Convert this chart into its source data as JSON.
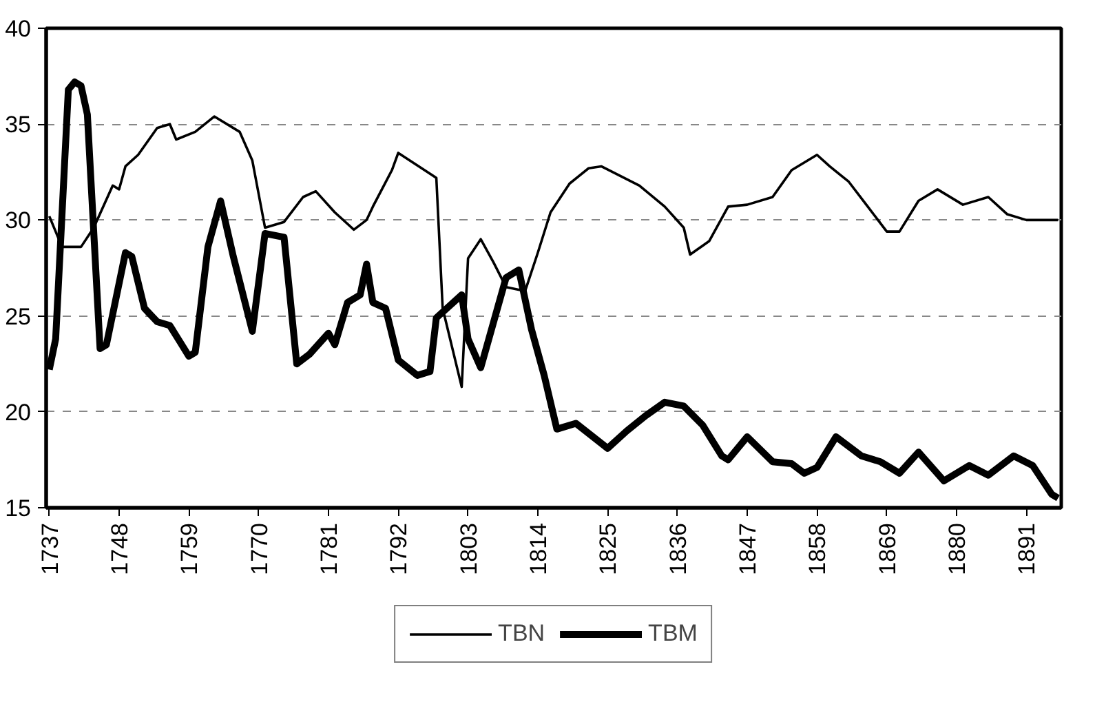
{
  "chart_data": {
    "type": "line",
    "xlim": [
      1736.5,
      1896.5
    ],
    "ylim": [
      15,
      40
    ],
    "xticks": [
      1737,
      1748,
      1759,
      1770,
      1781,
      1792,
      1803,
      1814,
      1825,
      1836,
      1847,
      1858,
      1869,
      1880,
      1891
    ],
    "yticks": [
      15,
      20,
      25,
      30,
      35,
      40
    ],
    "grid": "y",
    "legend": "bottom",
    "marker": "none",
    "line_style": "solid",
    "series": [
      {
        "name": "TBN",
        "color": "#000000",
        "x": [
          1737,
          1739,
          1742,
          1744,
          1747,
          1748,
          1749,
          1751,
          1754,
          1756,
          1757,
          1760,
          1763,
          1767,
          1769,
          1771,
          1774,
          1777,
          1779,
          1782,
          1785,
          1787,
          1788,
          1791,
          1792,
          1798,
          1799,
          1802,
          1803,
          1805,
          1807,
          1809,
          1812,
          1814,
          1816,
          1819,
          1822,
          1824,
          1827,
          1830,
          1834,
          1837,
          1838,
          1841,
          1844,
          1847,
          1851,
          1854,
          1858,
          1860,
          1863,
          1866,
          1869,
          1871,
          1874,
          1877,
          1881,
          1885,
          1888,
          1891,
          1896
        ],
        "values": [
          30.2,
          28.6,
          28.6,
          29.6,
          31.8,
          31.6,
          32.8,
          33.4,
          34.8,
          35,
          34.2,
          34.6,
          35.4,
          34.6,
          33.1,
          29.6,
          29.9,
          31.2,
          31.5,
          30.4,
          29.5,
          30,
          30.7,
          32.6,
          33.5,
          32.2,
          25.4,
          21.3,
          28,
          29,
          27.8,
          26.5,
          26.3,
          28.3,
          30.4,
          31.9,
          32.7,
          32.8,
          32.3,
          31.8,
          30.7,
          29.6,
          28.2,
          28.9,
          30.7,
          30.8,
          31.2,
          32.6,
          33.4,
          32.8,
          32,
          30.7,
          29.4,
          29.4,
          31,
          31.6,
          30.8,
          31.2,
          30.3,
          30,
          30
        ]
      },
      {
        "name": "TBM",
        "color": "#000000",
        "x": [
          1737,
          1738,
          1740,
          1741,
          1742,
          1743,
          1745,
          1746,
          1749,
          1750,
          1752,
          1754,
          1756,
          1759,
          1760,
          1762,
          1764,
          1766,
          1769,
          1771,
          1774,
          1776,
          1778,
          1781,
          1782,
          1784,
          1786,
          1787,
          1788,
          1790,
          1792,
          1795,
          1797,
          1798,
          1802,
          1803,
          1805,
          1809,
          1811,
          1813,
          1815,
          1817,
          1820,
          1825,
          1828,
          1831,
          1834,
          1837,
          1840,
          1843,
          1844,
          1847,
          1851,
          1854,
          1856,
          1858,
          1861,
          1865,
          1868,
          1871,
          1874,
          1878,
          1882,
          1885,
          1889,
          1892,
          1895,
          1896
        ],
        "values": [
          22.2,
          23.8,
          36.8,
          37.2,
          37,
          35.5,
          23.3,
          23.5,
          28.3,
          28.1,
          25.4,
          24.7,
          24.5,
          22.9,
          23.1,
          28.6,
          31,
          28.1,
          24.2,
          29.3,
          29.1,
          22.5,
          23,
          24.1,
          23.5,
          25.7,
          26.1,
          27.7,
          25.7,
          25.4,
          22.7,
          21.9,
          22.1,
          24.9,
          26.1,
          23.8,
          22.3,
          27,
          27.4,
          24.3,
          21.9,
          19.1,
          19.4,
          18.1,
          19,
          19.8,
          20.5,
          20.3,
          19.3,
          17.7,
          17.5,
          18.7,
          17.4,
          17.3,
          16.8,
          17.1,
          18.7,
          17.7,
          17.4,
          16.8,
          17.9,
          16.4,
          17.2,
          16.7,
          17.7,
          17.2,
          15.7,
          15.5
        ]
      }
    ]
  }
}
